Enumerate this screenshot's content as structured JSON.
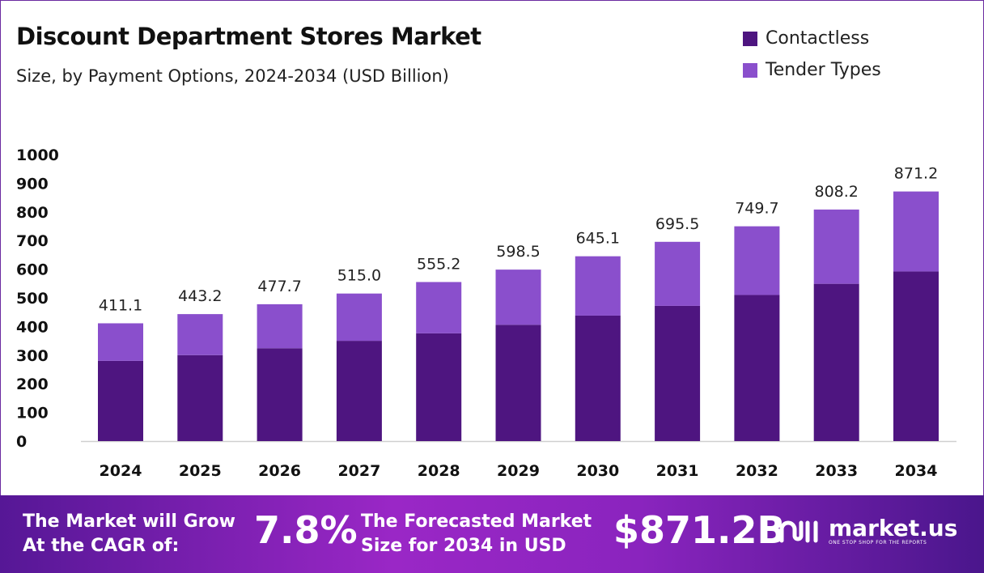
{
  "chart_data": {
    "type": "bar",
    "stacked": true,
    "title": "Discount Department Stores Market",
    "subtitle": "Size, by Payment Options, 2024-2034 (USD Billion)",
    "categories": [
      "2024",
      "2025",
      "2026",
      "2027",
      "2028",
      "2029",
      "2030",
      "2031",
      "2032",
      "2033",
      "2034"
    ],
    "series": [
      {
        "name": "Contactless",
        "color": "#4e1580",
        "values": [
          280,
          300,
          324,
          350,
          376,
          406,
          438,
          472,
          510,
          549,
          592
        ]
      },
      {
        "name": "Tender Types",
        "color": "#8a4fcc",
        "values": [
          131.1,
          143.2,
          153.7,
          165.0,
          179.2,
          192.5,
          207.1,
          223.5,
          239.7,
          259.2,
          279.2
        ]
      }
    ],
    "totals": [
      "411.1",
      "443.2",
      "477.7",
      "515.0",
      "555.2",
      "598.5",
      "645.1",
      "695.5",
      "749.7",
      "808.2",
      "871.2"
    ],
    "ylim": [
      0,
      1000
    ],
    "yticks": [
      "0",
      "100",
      "200",
      "300",
      "400",
      "500",
      "600",
      "700",
      "800",
      "900",
      "1000"
    ],
    "grid": false,
    "legend_position": "top-right"
  },
  "footer": {
    "cagr_text_line1": "The Market will Grow",
    "cagr_text_line2": "At the CAGR of:",
    "cagr_value": "7.8%",
    "forecast_text_line1": "The Forecasted Market",
    "forecast_text_line2": "Size for 2034 in USD",
    "forecast_value": "$871.2B",
    "brand_name": "market.us",
    "brand_tagline": "ONE STOP SHOP FOR THE REPORTS"
  }
}
